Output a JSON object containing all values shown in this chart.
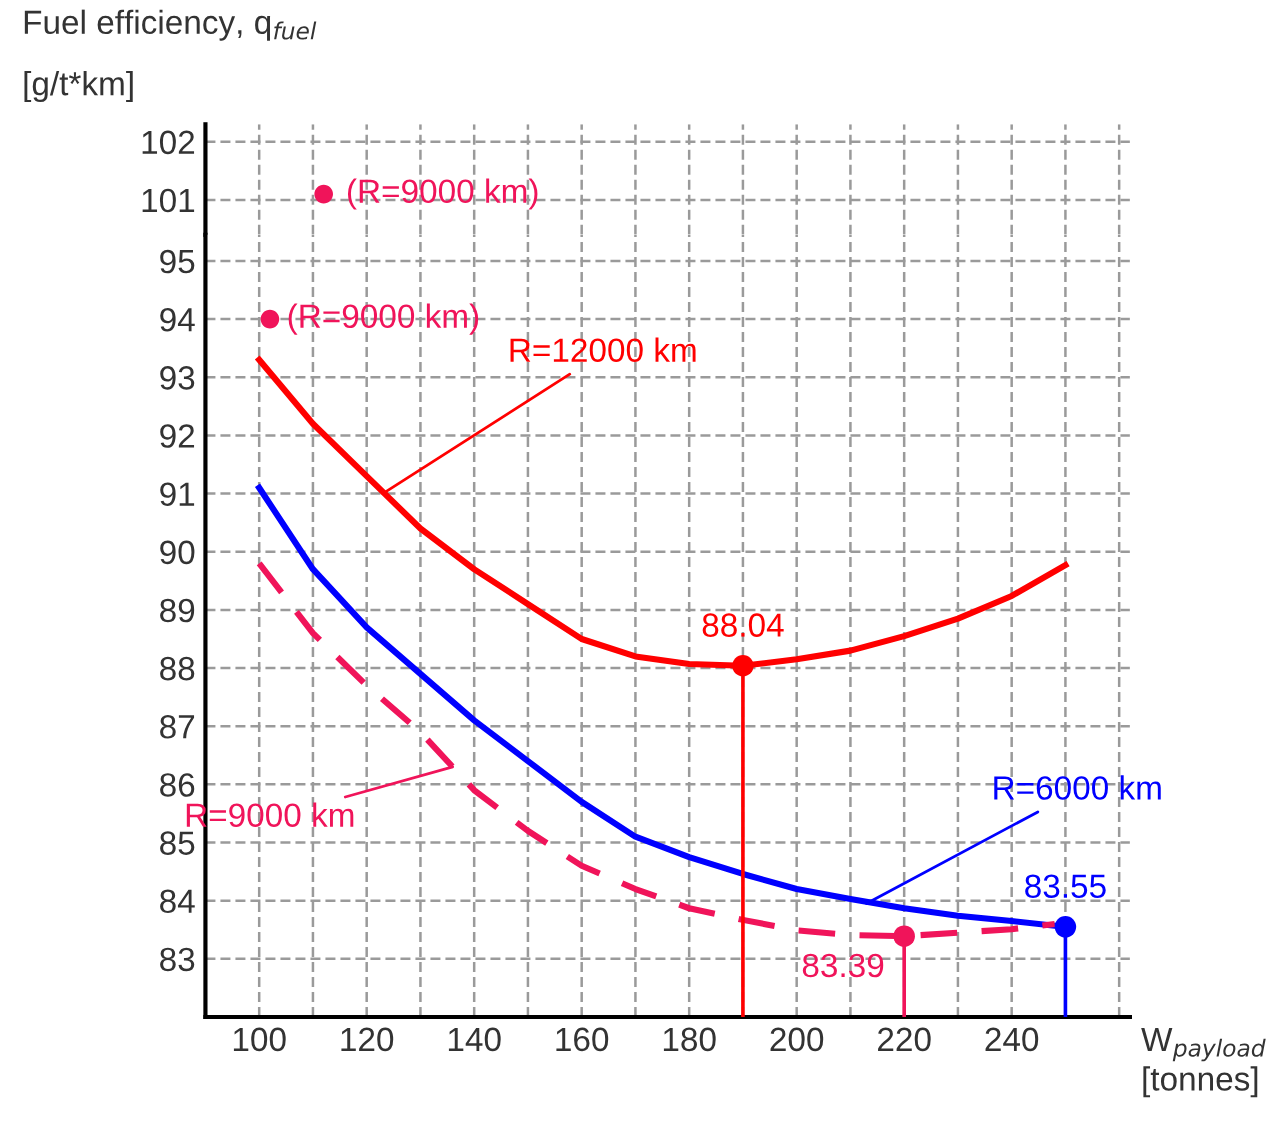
{
  "chart_data": [
    {
      "type": "scatter",
      "ylabel": "Fuel efficiency, q$_{fuel}$",
      "xlim": [
        90,
        262
      ],
      "ylim": [
        100.4,
        102.3
      ],
      "yticks": [
        101,
        102
      ],
      "xticks": [
        {
          "value": 100,
          "label": null
        },
        {
          "value": 110,
          "label": null
        },
        {
          "value": 120,
          "label": null
        },
        {
          "value": 130,
          "label": null
        },
        {
          "value": 140,
          "label": null
        },
        {
          "value": 150,
          "label": null
        },
        {
          "value": 160,
          "label": null
        },
        {
          "value": 170,
          "label": null
        },
        {
          "value": 180,
          "label": null
        },
        {
          "value": 190,
          "label": null
        },
        {
          "value": 200,
          "label": null
        },
        {
          "value": 210,
          "label": null
        },
        {
          "value": 220,
          "label": null
        },
        {
          "value": 230,
          "label": null
        },
        {
          "value": 240,
          "label": null
        },
        {
          "value": 250,
          "label": null
        },
        {
          "value": 260,
          "label": null
        }
      ],
      "tick_labels": "y",
      "grid": true,
      "legend": false,
      "marker": "circle",
      "series": [
        {
          "color": "#f0145a",
          "x": [
            112
          ],
          "values": [
            101.1
          ]
        }
      ],
      "annotations": [
        "[g/t*km]",
        {
          "text": "(R=9000 km)",
          "x": 112,
          "y": 101.1
        }
      ]
    },
    {
      "type": "line",
      "xlabel": "W$_{payload}$\n[tonnes]",
      "xlim": [
        90,
        262
      ],
      "ylim": [
        82,
        95.45
      ],
      "yticks": [
        83,
        84,
        85,
        86,
        87,
        88,
        89,
        90,
        91,
        92,
        93,
        94,
        95
      ],
      "xticks": [
        100,
        {
          "value": 110,
          "label": null
        },
        120,
        {
          "value": 130,
          "label": null
        },
        140,
        {
          "value": 150,
          "label": null
        },
        160,
        {
          "value": 170,
          "label": null
        },
        180,
        {
          "value": 190,
          "label": null
        },
        200,
        {
          "value": 210,
          "label": null
        },
        220,
        {
          "value": 230,
          "label": null
        },
        240,
        {
          "value": 250,
          "label": null
        },
        {
          "value": 260,
          "label": null
        }
      ],
      "grid": true,
      "legend": false,
      "marker": "none",
      "series": [
        {
          "type": "line",
          "color": "#ff0000",
          "line_style": "solid",
          "x": [
            100,
            110,
            120,
            130,
            140,
            150,
            160,
            170,
            180,
            190,
            200,
            210,
            220,
            230,
            240,
            250
          ],
          "values": [
            93.3,
            92.2,
            91.3,
            90.4,
            89.7,
            89.1,
            88.5,
            88.2,
            88.07,
            88.04,
            88.15,
            88.3,
            88.55,
            88.85,
            89.24,
            89.77
          ]
        },
        {
          "type": "line",
          "color": "#0000ff",
          "line_style": "solid",
          "x": [
            100,
            110,
            120,
            130,
            140,
            150,
            160,
            170,
            180,
            190,
            200,
            210,
            220,
            230,
            240,
            250
          ],
          "values": [
            91.1,
            89.7,
            88.7,
            87.9,
            87.1,
            86.4,
            85.7,
            85.1,
            84.75,
            84.46,
            84.2,
            84.03,
            83.87,
            83.74,
            83.65,
            83.55
          ]
        },
        {
          "type": "line",
          "color": "#f0145a",
          "line_style": "dashed",
          "x": [
            100,
            110,
            120,
            130,
            140,
            150,
            160,
            170,
            180,
            190,
            200,
            210,
            220,
            230,
            240,
            248
          ],
          "values": [
            89.8,
            88.6,
            87.7,
            86.9,
            85.9,
            85.2,
            84.6,
            84.2,
            83.87,
            83.67,
            83.49,
            83.41,
            83.39,
            83.45,
            83.51,
            83.6
          ]
        },
        {
          "type": "scatter",
          "color": "#f0145a",
          "marker": "circle",
          "x": [
            102
          ],
          "values": [
            94.0
          ]
        },
        {
          "type": "lollipop",
          "color": "#ff0000",
          "marker": "circle",
          "x": [
            190
          ],
          "values": [
            88.04
          ],
          "value_labels": [
            "88.04"
          ]
        },
        {
          "type": "lollipop",
          "color": "#f0145a",
          "marker": "circle",
          "x": [
            220
          ],
          "values": [
            83.39
          ],
          "value_labels": [
            "83.39"
          ]
        },
        {
          "type": "lollipop",
          "color": "#0000ff",
          "marker": "circle",
          "x": [
            250
          ],
          "values": [
            83.55
          ],
          "value_labels": [
            "83.55"
          ]
        }
      ],
      "annotations": [
        {
          "text": "(R=9000 km)",
          "x": 102,
          "y": 94.0
        },
        {
          "text": "R=12000 km",
          "x": 123,
          "y": 91.0
        },
        {
          "text": "R=9000 km",
          "x": 136,
          "y": 86.3
        },
        {
          "text": "R=6000 km",
          "x": 213,
          "y": 83.95
        }
      ]
    }
  ]
}
